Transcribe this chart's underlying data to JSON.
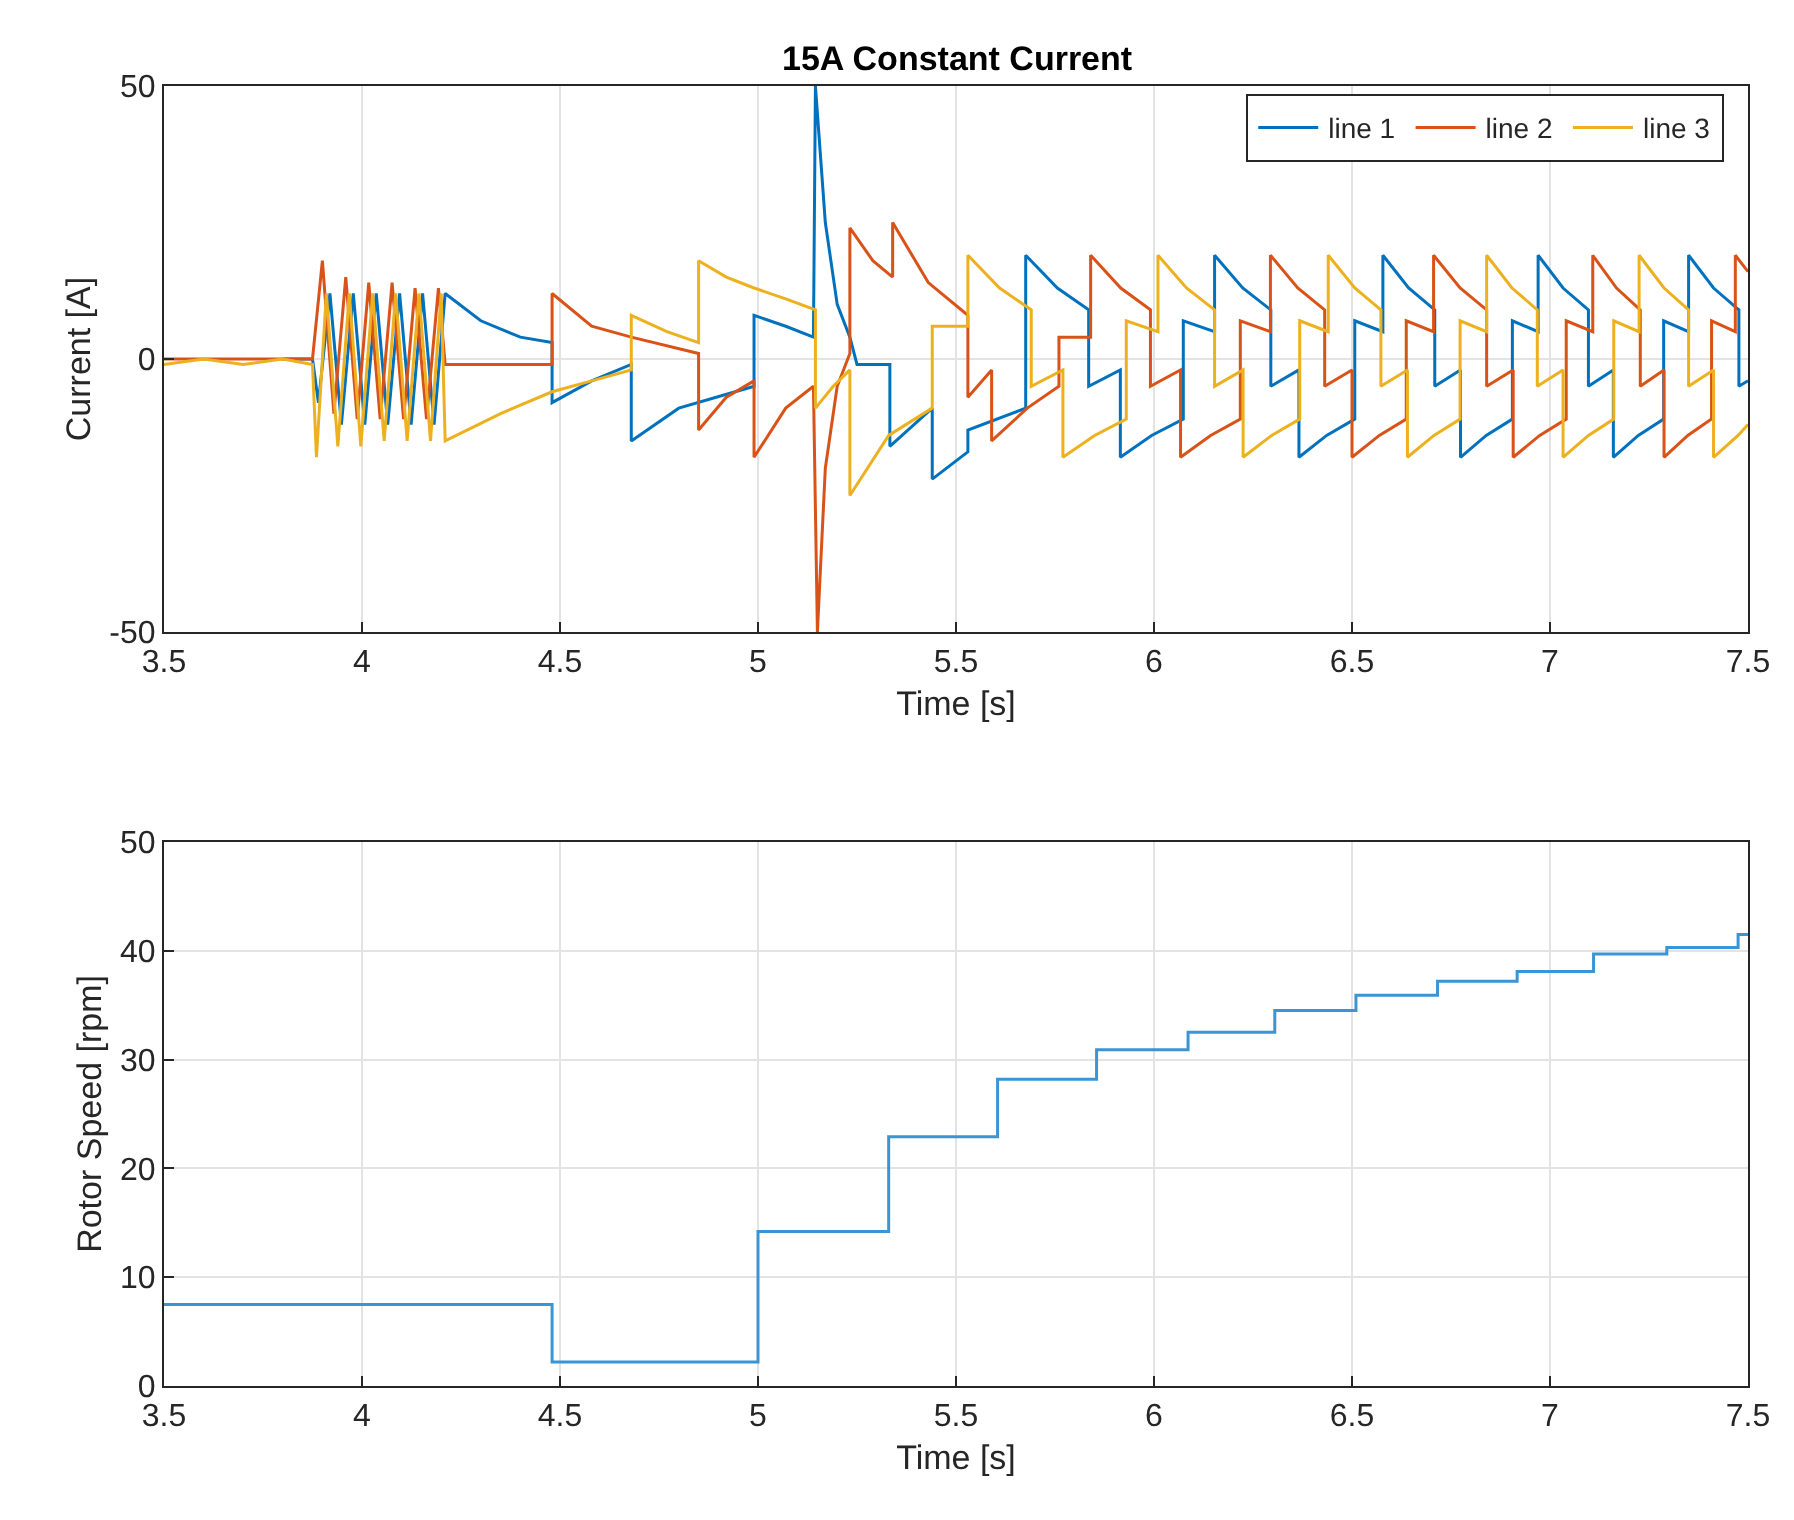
{
  "chart_data": [
    {
      "type": "line",
      "title": "15A Constant Current",
      "xlabel": "Time [s]",
      "ylabel": "Current [A]",
      "xlim": [
        3.5,
        7.5
      ],
      "xticks": [
        3.5,
        4,
        4.5,
        5,
        5.5,
        6,
        6.5,
        7,
        7.5
      ],
      "ylim": [
        -50,
        50
      ],
      "yticks": [
        -50,
        0,
        50
      ],
      "grid": true,
      "legend": "top right",
      "series": [
        {
          "name": "line 1",
          "color": "#0072bd",
          "x": [
            3.8,
            3.875,
            3.89,
            3.919,
            3.948,
            3.978,
            4.007,
            4.036,
            4.065,
            4.095,
            4.124,
            4.153,
            4.182,
            4.21,
            4.3,
            4.4,
            4.48,
            4.48,
            4.58,
            4.68,
            4.68,
            4.8,
            4.99,
            4.99,
            5.07,
            5.14,
            5.145,
            5.17,
            5.2,
            5.232,
            5.25,
            5.333,
            5.333,
            5.44,
            5.44,
            5.53,
            5.53,
            5.676,
            5.676,
            5.756,
            5.835,
            5.835,
            5.915,
            5.915,
            5.994,
            6.074,
            6.074,
            6.153,
            6.153,
            6.224,
            6.295,
            6.295,
            6.366,
            6.366,
            6.436,
            6.507,
            6.507,
            6.578,
            6.578,
            6.643,
            6.709,
            6.709,
            6.774,
            6.774,
            6.839,
            6.905,
            6.905,
            6.97,
            6.97,
            7.033,
            7.097,
            7.097,
            7.16,
            7.16,
            7.223,
            7.287,
            7.287,
            7.35,
            7.35,
            7.413,
            7.477,
            7.477,
            7.5
          ],
          "values": [
            0,
            0,
            -8,
            12,
            -12,
            12,
            -12,
            12,
            -12,
            12,
            -12,
            12,
            -12,
            12,
            7,
            4,
            3,
            -8,
            -4,
            -1,
            -15,
            -9,
            -5,
            8,
            6,
            4,
            50,
            25,
            10,
            4,
            -1,
            -1,
            -16,
            -9,
            -22,
            -17,
            -13,
            -9,
            19,
            13,
            9,
            -5,
            -2,
            -18,
            -14,
            -11,
            7,
            5,
            19,
            13,
            9,
            -5,
            -2,
            -18,
            -14,
            -11,
            7,
            5,
            19,
            13,
            9,
            -5,
            -2,
            -18,
            -14,
            -11,
            7,
            5,
            19,
            13,
            9,
            -5,
            -2,
            -18,
            -14,
            -11,
            7,
            5,
            19,
            13,
            9,
            -5,
            -4
          ]
        },
        {
          "name": "line 2",
          "color": "#d95319",
          "x": [
            3.5,
            3.6,
            3.7,
            3.8,
            3.875,
            3.9,
            3.929,
            3.959,
            3.988,
            4.017,
            4.046,
            4.076,
            4.105,
            4.134,
            4.163,
            4.193,
            4.21,
            4.35,
            4.48,
            4.48,
            4.58,
            4.68,
            4.85,
            4.85,
            4.92,
            4.99,
            4.99,
            5.07,
            5.14,
            5.15,
            5.17,
            5.2,
            5.232,
            5.232,
            5.29,
            5.34,
            5.34,
            5.43,
            5.53,
            5.53,
            5.59,
            5.59,
            5.68,
            5.76,
            5.76,
            5.84,
            5.84,
            5.916,
            5.991,
            5.991,
            6.067,
            6.067,
            6.143,
            6.218,
            6.218,
            6.294,
            6.294,
            6.363,
            6.431,
            6.431,
            6.5,
            6.5,
            6.569,
            6.637,
            6.637,
            6.706,
            6.706,
            6.773,
            6.84,
            6.84,
            6.907,
            6.907,
            6.974,
            7.041,
            7.041,
            7.108,
            7.108,
            7.168,
            7.228,
            7.228,
            7.288,
            7.288,
            7.348,
            7.408,
            7.408,
            7.468,
            7.468,
            7.5
          ],
          "values": [
            0,
            0,
            0,
            0,
            0,
            18,
            -10,
            15,
            -11,
            14,
            -11,
            14,
            -11,
            13,
            -11,
            13,
            -1,
            -1,
            -1,
            12,
            6,
            4,
            1,
            -13,
            -7,
            -4,
            -18,
            -9,
            -5,
            -50,
            -20,
            -5,
            1,
            24,
            18,
            15,
            25,
            14,
            8,
            -7,
            -2,
            -15,
            -9,
            -5,
            4,
            4,
            19,
            13,
            9,
            -5,
            -2,
            -18,
            -14,
            -11,
            7,
            5,
            19,
            13,
            9,
            -5,
            -2,
            -18,
            -14,
            -11,
            7,
            5,
            19,
            13,
            9,
            -5,
            -2,
            -18,
            -14,
            -11,
            7,
            5,
            19,
            13,
            9,
            -5,
            -2,
            -18,
            -14,
            -11,
            7,
            5,
            19,
            16
          ]
        },
        {
          "name": "line 3",
          "color": "#edb120",
          "x": [
            3.5,
            3.6,
            3.7,
            3.8,
            3.875,
            3.885,
            3.91,
            3.939,
            3.968,
            3.997,
            4.027,
            4.056,
            4.085,
            4.114,
            4.144,
            4.173,
            4.2,
            4.21,
            4.35,
            4.48,
            4.58,
            4.68,
            4.68,
            4.77,
            4.85,
            4.85,
            4.92,
            4.99,
            5.07,
            5.145,
            5.145,
            5.19,
            5.232,
            5.232,
            5.33,
            5.44,
            5.44,
            5.53,
            5.53,
            5.61,
            5.69,
            5.69,
            5.77,
            5.77,
            5.85,
            5.93,
            5.93,
            6.01,
            6.01,
            6.082,
            6.153,
            6.153,
            6.225,
            6.225,
            6.297,
            6.368,
            6.368,
            6.44,
            6.44,
            6.507,
            6.573,
            6.573,
            6.64,
            6.64,
            6.707,
            6.773,
            6.773,
            6.84,
            6.84,
            6.904,
            6.968,
            6.968,
            7.033,
            7.033,
            7.097,
            7.161,
            7.161,
            7.225,
            7.225,
            7.288,
            7.35,
            7.35,
            7.413,
            7.413,
            7.475,
            7.5
          ],
          "values": [
            -1,
            0,
            -1,
            0,
            -1,
            -18,
            12,
            -16,
            12,
            -16,
            12,
            -15,
            12,
            -15,
            12,
            -15,
            12,
            -15,
            -10,
            -6,
            -4,
            -2,
            8,
            5,
            3,
            18,
            15,
            13,
            11,
            9,
            -9,
            -5,
            -2,
            -25,
            -14,
            -9,
            6,
            6,
            19,
            13,
            9,
            -5,
            -2,
            -18,
            -14,
            -11,
            7,
            5,
            19,
            13,
            9,
            -5,
            -2,
            -18,
            -14,
            -11,
            7,
            5,
            19,
            13,
            9,
            -5,
            -2,
            -18,
            -14,
            -11,
            7,
            5,
            19,
            13,
            9,
            -5,
            -2,
            -18,
            -14,
            -11,
            7,
            5,
            19,
            13,
            9,
            -5,
            -2,
            -18,
            -14,
            -12
          ]
        }
      ]
    },
    {
      "type": "step",
      "xlabel": "Time [s]",
      "ylabel": "Rotor Speed [rpm]",
      "xlim": [
        3.5,
        7.5
      ],
      "xticks": [
        3.5,
        4,
        4.5,
        5,
        5.5,
        6,
        6.5,
        7,
        7.5
      ],
      "ylim": [
        0,
        50
      ],
      "yticks": [
        0,
        10,
        20,
        30,
        40,
        50
      ],
      "grid": true,
      "series": [
        {
          "color": "#3b95d4",
          "x": [
            3.5,
            4.48,
            5.0,
            5.33,
            5.605,
            5.855,
            6.086,
            6.305,
            6.51,
            6.716,
            6.917,
            7.11,
            7.295,
            7.475,
            7.5
          ],
          "values": [
            7.5,
            2.2,
            14.2,
            22.9,
            28.2,
            30.9,
            32.5,
            34.5,
            35.9,
            37.2,
            38.1,
            39.7,
            40.3,
            41.5,
            41.5
          ]
        }
      ]
    }
  ]
}
